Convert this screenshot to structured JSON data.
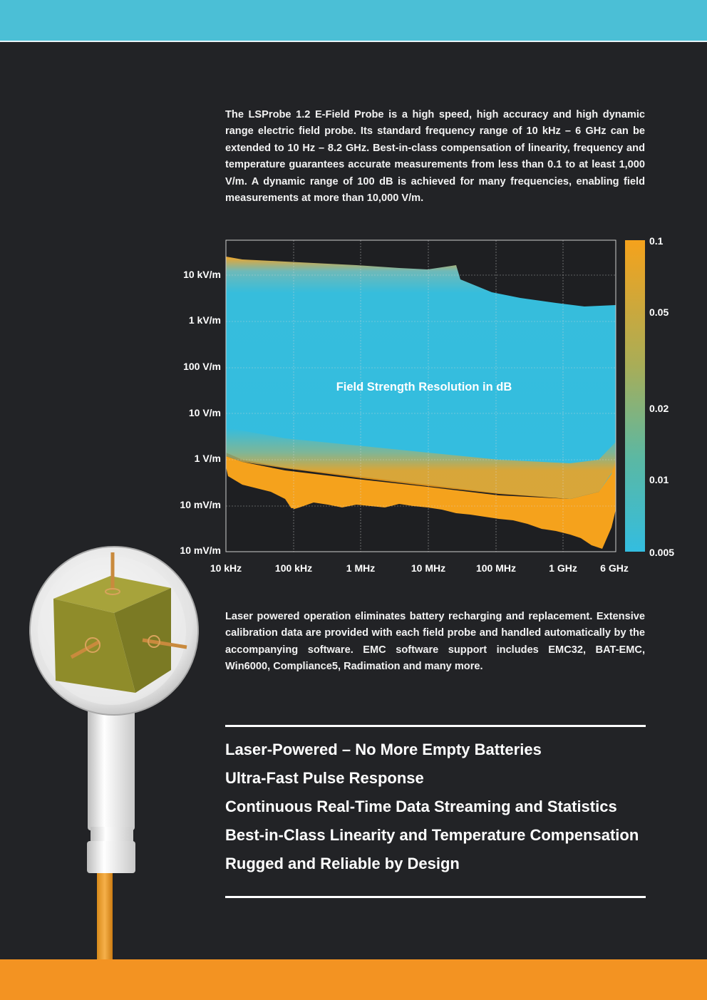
{
  "intro_text": "The LSProbe 1.2 E-Field Probe is a high speed, high accuracy and high dynamic range electric field probe. Its standard frequency range of 10 kHz – 6 GHz can be extended to 10 Hz – 8.2 GHz. Best-in-class compensation of linearity, frequency and temperature guarantees accurate measurements from less than 0.1 to at least 1,000 V/m.  A dynamic range of 100 dB is achieved for many frequencies, enabling field measurements at more than 10,000 V/m.",
  "chart_data": {
    "type": "heatmap",
    "annotation": "Field Strength Resolution in dB",
    "x_tick_labels": [
      "10 kHz",
      "100 kHz",
      "1 MHz",
      "10 MHz",
      "100 MHz",
      "1 GHz",
      "6 GHz"
    ],
    "y_tick_labels": [
      "10 kV/m",
      "1 kV/m",
      "100 V/m",
      "10 V/m",
      "1 V/m",
      "10 mV/m",
      "10 mV/m"
    ],
    "colorbar_labels": [
      "0.1",
      "0.05",
      "0.02",
      "0.01",
      "0.005"
    ],
    "x_scale": "log",
    "y_scale": "log",
    "colormap": [
      "#33bde0",
      "#f5a21c"
    ],
    "grid": true
  },
  "body_text": "Laser powered operation eliminates battery recharging and replacement. Extensive calibration data are provided with each field probe and handled automatically by the accompanying software.  EMC software support includes EMC32, BAT-EMC, Win6000, Compliance5, Radimation and many more.",
  "features": [
    "Laser-Powered – No More Empty Batteries",
    "Ultra-Fast Pulse Response",
    "Continuous Real-Time Data Streaming and Statistics",
    "Best-in-Class Linearity and Temperature Compensation",
    "Rugged and Reliable by Design"
  ],
  "colors": {
    "top_band": "#4bbfd6",
    "bottom_band": "#f39322",
    "background": "#222326",
    "accent_orange": "#f5a21c",
    "accent_cyan": "#33bde0"
  }
}
